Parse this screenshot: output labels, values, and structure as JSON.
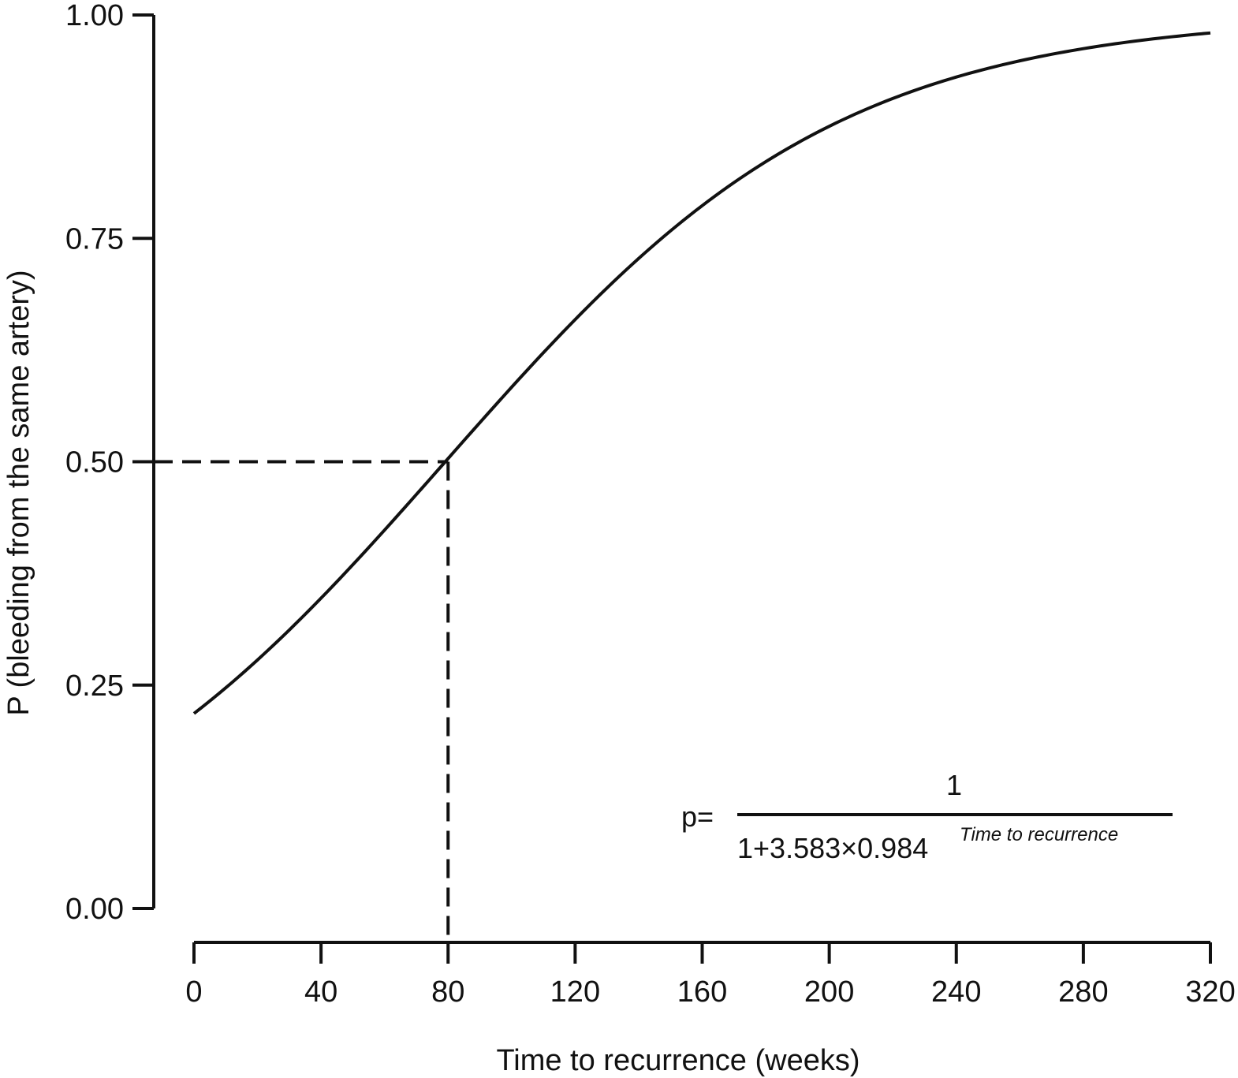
{
  "chart_data": {
    "type": "line",
    "xlabel": "Time to recurrence (weeks)",
    "ylabel": "P (bleeding from the same artery)",
    "x_ticks": [
      "0",
      "40",
      "80",
      "120",
      "160",
      "200",
      "240",
      "280",
      "320"
    ],
    "y_ticks": [
      "0.00",
      "0.25",
      "0.50",
      "0.75",
      "1.00"
    ],
    "xlim": [
      0,
      320
    ],
    "ylim": [
      0,
      1
    ],
    "grid": false,
    "series": [
      {
        "model": {
          "a": 3.583,
          "b": 0.984
        },
        "x": [
          0,
          10,
          20,
          30,
          40,
          50,
          60,
          70,
          80,
          90,
          100,
          110,
          120,
          130,
          140,
          150,
          160,
          170,
          180,
          190,
          200,
          210,
          220,
          230,
          240,
          250,
          260,
          270,
          280,
          290,
          300,
          310,
          320
        ],
        "y": [
          0.218,
          0.247,
          0.278,
          0.312,
          0.347,
          0.383,
          0.421,
          0.459,
          0.497,
          0.535,
          0.573,
          0.61,
          0.646,
          0.68,
          0.712,
          0.742,
          0.77,
          0.796,
          0.82,
          0.841,
          0.86,
          0.877,
          0.893,
          0.906,
          0.918,
          0.929,
          0.938,
          0.946,
          0.953,
          0.959,
          0.965,
          0.969,
          0.974
        ]
      }
    ],
    "reference": {
      "x": 80,
      "y": 0.5
    },
    "formula": {
      "lhs": "p=",
      "numerator": "1",
      "denominator": "1+3.583×0.984",
      "exponent": "Time to recurrence"
    }
  }
}
